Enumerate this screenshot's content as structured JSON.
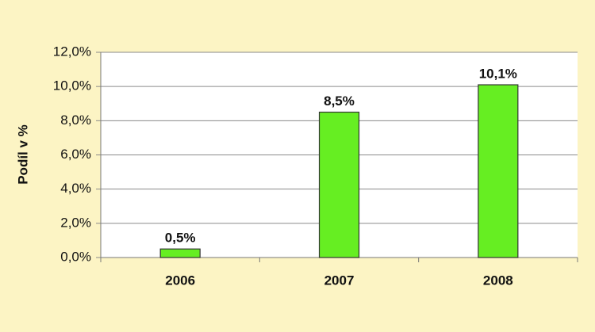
{
  "chart_data": {
    "type": "bar",
    "y_label": "Podíl v %",
    "categories": [
      "2006",
      "2007",
      "2008"
    ],
    "values": [
      0.5,
      8.5,
      10.1
    ],
    "value_labels": [
      "0,5%",
      "8,5%",
      "10,1%"
    ],
    "color": "#66ee22",
    "ylim": [
      0,
      12
    ],
    "yticks": [
      {
        "value": 0,
        "label": "0,0%"
      },
      {
        "value": 2,
        "label": "2,0%"
      },
      {
        "value": 4,
        "label": "4,0%"
      },
      {
        "value": 6,
        "label": "6,0%"
      },
      {
        "value": 8,
        "label": "8,0%"
      },
      {
        "value": 10,
        "label": "10,0%"
      },
      {
        "value": 12,
        "label": "12,0%"
      }
    ],
    "grid": true
  }
}
